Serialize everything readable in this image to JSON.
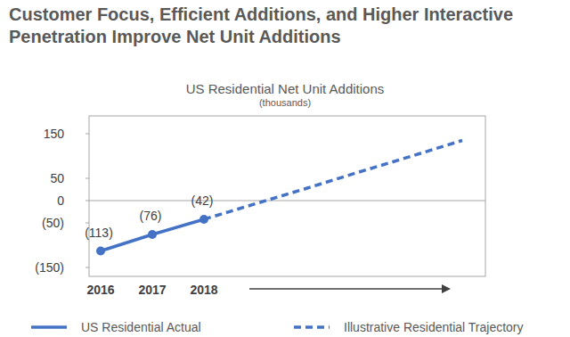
{
  "chart_data": {
    "type": "line",
    "title": "Customer Focus, Efficient Additions, and Higher Interactive Penetration Improve Net Unit Additions",
    "subtitle": "US Residential Net Unit Additions",
    "ylabel": "(thousands)",
    "categories": [
      "2016",
      "2017",
      "2018",
      null,
      null,
      null,
      null,
      null
    ],
    "series": [
      {
        "name": "US Residential Actual",
        "color": "#4472c4",
        "line_style": "solid",
        "marker": "circle",
        "data_labels": true,
        "values": [
          -113,
          -76,
          -42,
          null,
          null,
          null,
          null,
          null
        ],
        "value_labels": [
          "(113)",
          "(76)",
          "(42)",
          null,
          null,
          null,
          null,
          null
        ]
      },
      {
        "name": "Illustrative Residential Trajectory",
        "color": "#4472c4",
        "line_style": "dashed",
        "marker": "none",
        "values": [
          null,
          null,
          -42,
          -7,
          28,
          64,
          99,
          135
        ]
      }
    ],
    "ylim": [
      -170,
      190
    ],
    "yticks": [
      {
        "value": -150,
        "label": "(150)"
      },
      {
        "value": -50,
        "label": "(50)"
      },
      0,
      50,
      150
    ],
    "grid": false,
    "legend": "bottom"
  }
}
